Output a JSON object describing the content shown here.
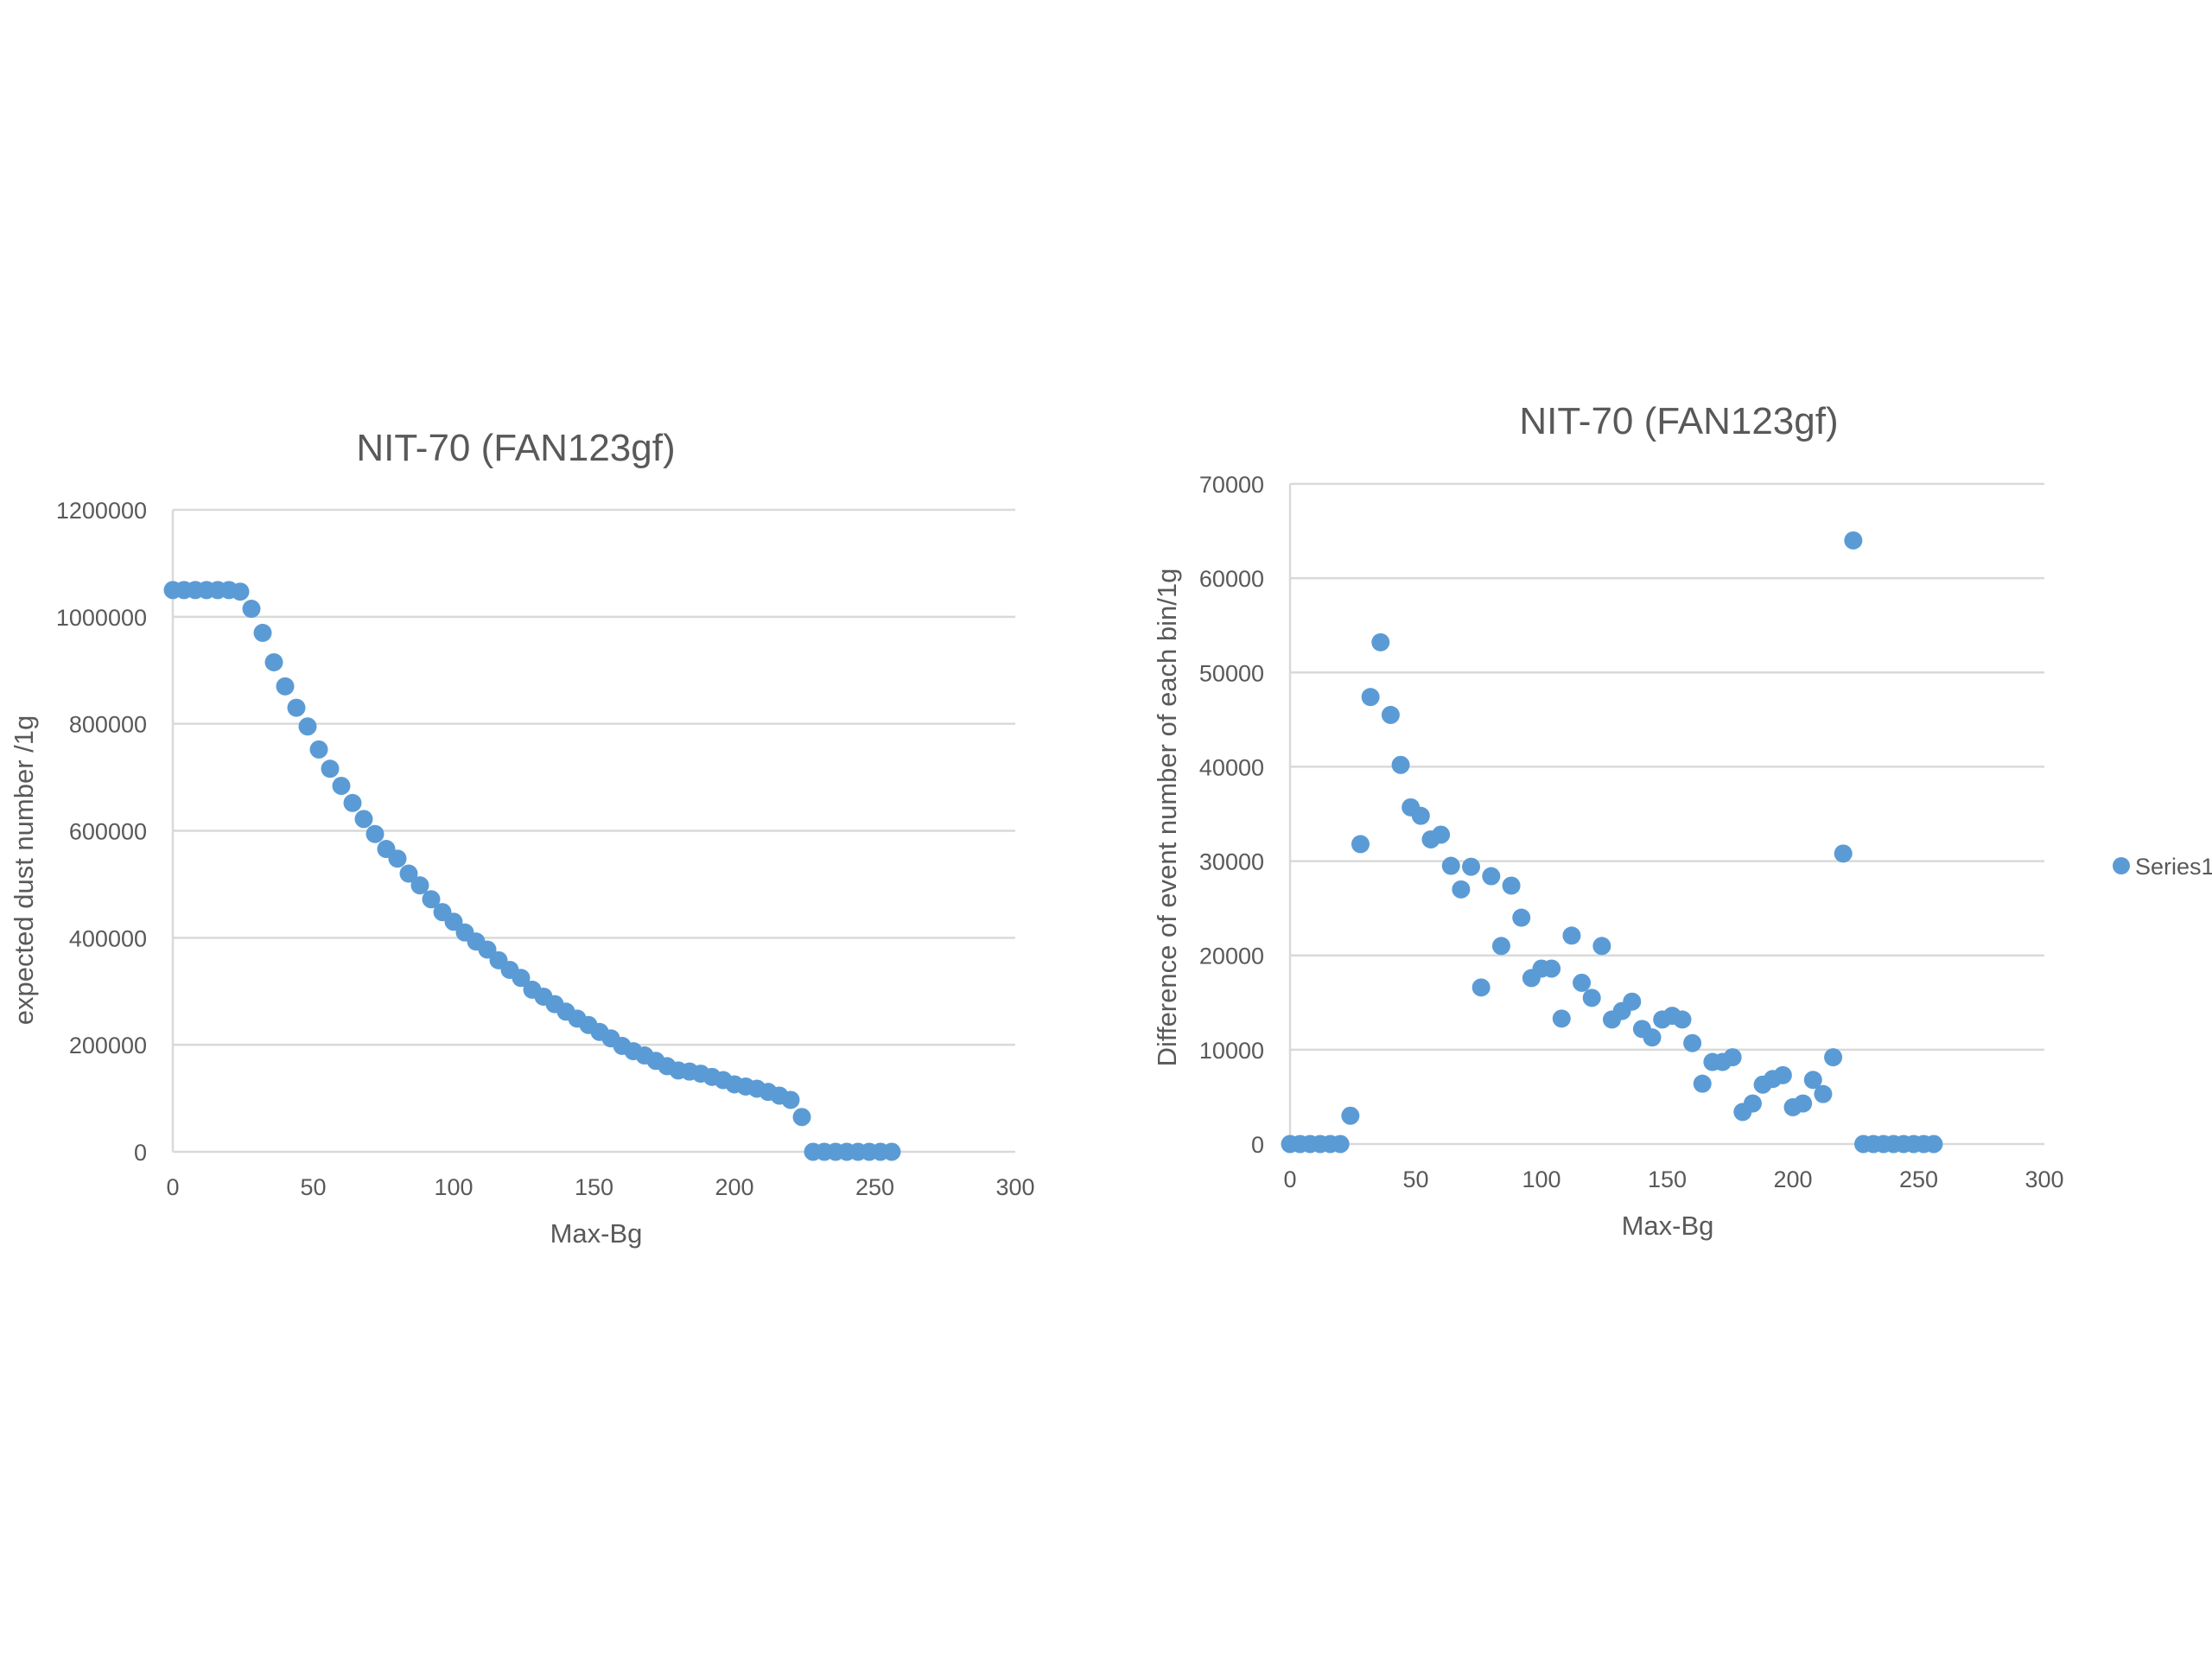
{
  "chart_data": [
    {
      "type": "scatter",
      "title": "NIT-70 (FAN123gf)",
      "xlabel": "Max-Bg",
      "ylabel": "expected dust number /1g",
      "xlim": [
        0,
        300
      ],
      "ylim": [
        0,
        1200000
      ],
      "xticks": [
        "0",
        "50",
        "100",
        "150",
        "200",
        "250",
        "300"
      ],
      "yticks": [
        "0",
        "200000",
        "400000",
        "600000",
        "800000",
        "1000000",
        "1200000"
      ],
      "grid": "horizontal",
      "color": "#5B9BD5",
      "series": [
        {
          "x": [
            0,
            4,
            8,
            12,
            16,
            20,
            24,
            28,
            32,
            36,
            40,
            44,
            48,
            52,
            56,
            60,
            64,
            68,
            72,
            76,
            80,
            84,
            88,
            92,
            96,
            100,
            104,
            108,
            112,
            116,
            120,
            124,
            128,
            132,
            136,
            140,
            144,
            148,
            152,
            156,
            160,
            164,
            168,
            172,
            176,
            180,
            184,
            188,
            192,
            196,
            200,
            204,
            208,
            212,
            216,
            220,
            224,
            228,
            232,
            236,
            240,
            244,
            248,
            252,
            256
          ],
          "y": [
            1050000,
            1050000,
            1050000,
            1050000,
            1050000,
            1050000,
            1047000,
            1015000,
            970000,
            915000,
            870000,
            830000,
            795000,
            752000,
            716000,
            684000,
            652000,
            622000,
            594000,
            566000,
            548000,
            520000,
            498000,
            472000,
            448000,
            430000,
            410000,
            393000,
            378000,
            358000,
            340000,
            325000,
            303000,
            290000,
            276000,
            262000,
            249000,
            237000,
            224000,
            212000,
            198000,
            188000,
            180000,
            170000,
            160000,
            152000,
            150000,
            146000,
            140000,
            134000,
            126000,
            122000,
            118000,
            112000,
            105000,
            97000,
            65000,
            0,
            0,
            0,
            0,
            0,
            0,
            0,
            0
          ]
        }
      ]
    },
    {
      "type": "scatter",
      "title": "NIT-70 (FAN123gf)",
      "xlabel": "Max-Bg",
      "ylabel": "Difference  of event number of each bin/1g",
      "xlim": [
        0,
        300
      ],
      "ylim": [
        0,
        70000
      ],
      "xticks": [
        "0",
        "50",
        "100",
        "150",
        "200",
        "250",
        "300"
      ],
      "yticks": [
        "0",
        "10000",
        "20000",
        "30000",
        "40000",
        "50000",
        "60000",
        "70000"
      ],
      "grid": "horizontal",
      "legend": "right",
      "color": "#5B9BD5",
      "series": [
        {
          "name": "Series1",
          "x": [
            0,
            4,
            8,
            12,
            16,
            20,
            24,
            28,
            32,
            36,
            40,
            44,
            48,
            52,
            56,
            60,
            64,
            68,
            72,
            76,
            80,
            84,
            88,
            92,
            96,
            100,
            104,
            108,
            112,
            116,
            120,
            124,
            128,
            132,
            136,
            140,
            144,
            148,
            152,
            156,
            160,
            164,
            168,
            172,
            176,
            180,
            184,
            188,
            192,
            196,
            200,
            204,
            208,
            212,
            216,
            220,
            224,
            228,
            232,
            236,
            240,
            244,
            248,
            252,
            256
          ],
          "y": [
            0,
            0,
            0,
            0,
            0,
            0,
            3000,
            31800,
            47400,
            53200,
            45500,
            40200,
            35700,
            34800,
            32300,
            32800,
            29500,
            27000,
            29400,
            16600,
            28400,
            21000,
            27400,
            24000,
            17600,
            18600,
            18600,
            13300,
            22100,
            17100,
            15500,
            21000,
            13200,
            14100,
            15100,
            12200,
            11300,
            13200,
            13600,
            13200,
            10700,
            6400,
            8700,
            8700,
            9200,
            3400,
            4300,
            6300,
            6900,
            7300,
            3900,
            4300,
            6800,
            5300,
            9200,
            30800,
            64000,
            0,
            0,
            0,
            0,
            0,
            0,
            0,
            0
          ]
        }
      ]
    }
  ]
}
